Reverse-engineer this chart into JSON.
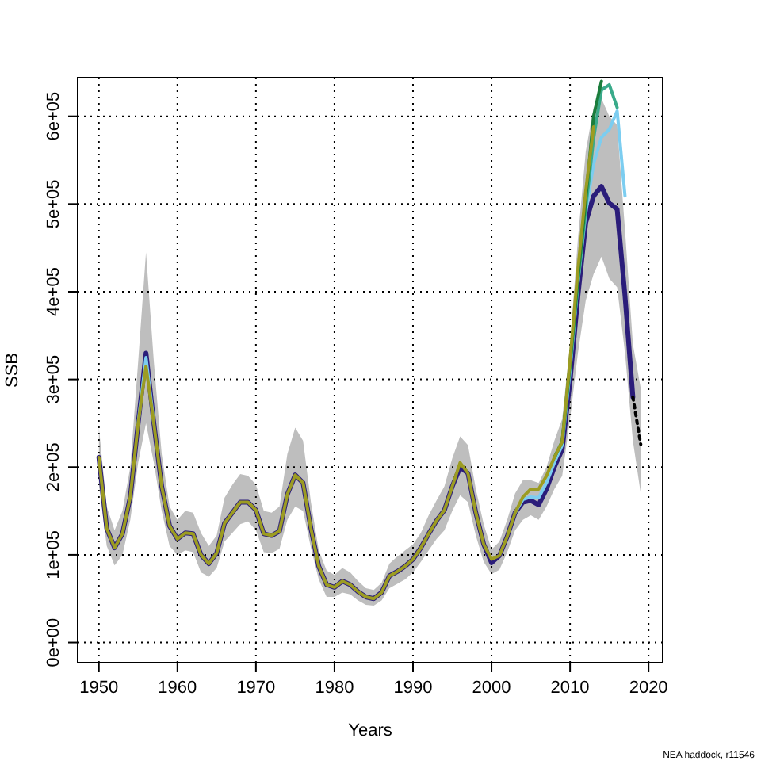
{
  "chart_data": {
    "type": "line",
    "xlabel": "Years",
    "ylabel": "SSB",
    "annotations": [
      "NEA haddock, r11546"
    ],
    "xlim": [
      1947.3,
      2021.8
    ],
    "ylim": [
      -23000,
      644000
    ],
    "grid": true,
    "xticks": [
      1950,
      1960,
      1970,
      1980,
      1990,
      2000,
      2010,
      2020
    ],
    "yticks": [
      {
        "value": 0,
        "label": "0e+00"
      },
      {
        "value": 100000,
        "label": "1e+05"
      },
      {
        "value": 200000,
        "label": "2e+05"
      },
      {
        "value": 300000,
        "label": "3e+05"
      },
      {
        "value": 400000,
        "label": "4e+05"
      },
      {
        "value": 500000,
        "label": "5e+05"
      },
      {
        "value": 600000,
        "label": "6e+05"
      }
    ],
    "x": [
      1950,
      1951,
      1952,
      1953,
      1954,
      1955,
      1956,
      1957,
      1958,
      1959,
      1960,
      1961,
      1962,
      1963,
      1964,
      1965,
      1966,
      1967,
      1968,
      1969,
      1970,
      1971,
      1972,
      1973,
      1974,
      1975,
      1976,
      1977,
      1978,
      1979,
      1980,
      1981,
      1982,
      1983,
      1984,
      1985,
      1986,
      1987,
      1988,
      1989,
      1990,
      1991,
      1992,
      1993,
      1994,
      1995,
      1996,
      1997,
      1998,
      1999,
      2000,
      2001,
      2002,
      2003,
      2004,
      2005,
      2006,
      2007,
      2008,
      2009,
      2010,
      2011,
      2012,
      2013,
      2014,
      2015,
      2016,
      2017,
      2018,
      2019
    ],
    "series": [
      {
        "color": "#2b1d7a",
        "values": [
          211000,
          130000,
          108000,
          124000,
          166000,
          250000,
          330000,
          250000,
          178000,
          133000,
          118000,
          125000,
          124000,
          100000,
          90000,
          102000,
          136000,
          148000,
          160000,
          160000,
          151000,
          124000,
          122000,
          127000,
          169000,
          191000,
          182000,
          130000,
          87000,
          66000,
          63000,
          70000,
          66000,
          58000,
          52000,
          50000,
          57000,
          76000,
          81000,
          87000,
          95000,
          108000,
          124000,
          139000,
          151000,
          178000,
          200000,
          193000,
          148000,
          112000,
          91000,
          99000,
          121000,
          148000,
          160000,
          162000,
          157000,
          175000,
          200000,
          220000,
          298000,
          395000,
          479000,
          509000,
          520000,
          501000,
          494000,
          395000,
          280000,
          null
        ],
        "lower": [
          180000,
          110000,
          88000,
          100000,
          140000,
          205000,
          250000,
          205000,
          150000,
          110000,
          100000,
          105000,
          103000,
          80000,
          75000,
          85000,
          115000,
          125000,
          135000,
          138000,
          128000,
          103000,
          102000,
          107000,
          140000,
          155000,
          150000,
          108000,
          72000,
          52000,
          52000,
          57000,
          55000,
          48000,
          43000,
          42000,
          48000,
          62000,
          67000,
          72000,
          80000,
          92000,
          105000,
          118000,
          128000,
          150000,
          168000,
          160000,
          122000,
          92000,
          78000,
          83000,
          103000,
          128000,
          140000,
          145000,
          140000,
          155000,
          175000,
          190000,
          255000,
          330000,
          390000,
          420000,
          440000,
          415000,
          405000,
          330000,
          230000,
          170000
        ],
        "upper": [
          245000,
          155000,
          128000,
          150000,
          200000,
          320000,
          445000,
          320000,
          215000,
          155000,
          140000,
          150000,
          148000,
          125000,
          110000,
          122000,
          165000,
          180000,
          192000,
          190000,
          180000,
          150000,
          148000,
          155000,
          215000,
          245000,
          230000,
          160000,
          105000,
          82000,
          77000,
          85000,
          80000,
          70000,
          62000,
          60000,
          68000,
          90000,
          98000,
          105000,
          112000,
          125000,
          145000,
          162000,
          178000,
          210000,
          235000,
          225000,
          175000,
          135000,
          106000,
          115000,
          140000,
          170000,
          185000,
          185000,
          182000,
          200000,
          230000,
          255000,
          340000,
          460000,
          560000,
          610000,
          620000,
          600000,
          590000,
          470000,
          340000,
          290000
        ]
      },
      {
        "color": "#7ccdf0",
        "values": [
          null,
          null,
          null,
          null,
          null,
          250000,
          325000,
          250000,
          null,
          null,
          null,
          null,
          null,
          null,
          null,
          null,
          null,
          null,
          null,
          null,
          null,
          null,
          null,
          null,
          null,
          null,
          null,
          null,
          null,
          null,
          null,
          null,
          null,
          null,
          null,
          null,
          null,
          null,
          null,
          null,
          null,
          null,
          null,
          null,
          null,
          null,
          null,
          null,
          null,
          null,
          null,
          null,
          null,
          148000,
          163000,
          166000,
          165000,
          182000,
          205000,
          225000,
          310000,
          410000,
          490000,
          546000,
          576000,
          585000,
          606000,
          509000,
          null,
          null
        ]
      },
      {
        "color": "#3aaa8a",
        "values": [
          null,
          null,
          null,
          null,
          null,
          null,
          null,
          null,
          null,
          null,
          null,
          null,
          null,
          null,
          null,
          null,
          null,
          null,
          null,
          null,
          null,
          null,
          null,
          null,
          null,
          null,
          null,
          null,
          null,
          null,
          null,
          null,
          null,
          null,
          null,
          null,
          null,
          null,
          null,
          null,
          null,
          null,
          null,
          null,
          null,
          null,
          null,
          null,
          null,
          null,
          null,
          null,
          null,
          null,
          null,
          null,
          null,
          null,
          211000,
          229000,
          315000,
          410000,
          495000,
          575000,
          630000,
          636000,
          610000,
          null,
          null,
          null
        ]
      },
      {
        "color": "#1b7d3c",
        "values": [
          null,
          null,
          null,
          null,
          null,
          null,
          null,
          null,
          null,
          null,
          null,
          null,
          null,
          null,
          null,
          null,
          null,
          null,
          null,
          null,
          null,
          null,
          null,
          null,
          null,
          null,
          null,
          null,
          null,
          null,
          null,
          null,
          null,
          null,
          null,
          null,
          null,
          null,
          null,
          null,
          null,
          null,
          null,
          null,
          null,
          null,
          null,
          null,
          null,
          null,
          null,
          null,
          null,
          null,
          null,
          null,
          null,
          null,
          211000,
          229000,
          318000,
          415000,
          505000,
          600000,
          640000,
          null,
          null,
          null,
          null,
          null
        ]
      },
      {
        "color": "#9c9c22",
        "values": [
          211000,
          130000,
          108000,
          124000,
          166000,
          250000,
          315000,
          250000,
          178000,
          133000,
          118000,
          125000,
          124000,
          100000,
          90000,
          102000,
          136000,
          148000,
          160000,
          160000,
          151000,
          124000,
          122000,
          127000,
          169000,
          191000,
          182000,
          130000,
          87000,
          66000,
          63000,
          70000,
          66000,
          58000,
          52000,
          50000,
          57000,
          76000,
          81000,
          87000,
          95000,
          108000,
          124000,
          139000,
          151000,
          178000,
          205000,
          193000,
          148000,
          112000,
          95000,
          99000,
          121000,
          148000,
          166000,
          175000,
          175000,
          190000,
          211000,
          229000,
          322000,
          425000,
          515000,
          588000,
          null,
          null,
          null,
          null,
          null,
          null
        ]
      },
      {
        "color": "#000000",
        "line_style": "dotted",
        "values": [
          null,
          null,
          null,
          null,
          null,
          null,
          null,
          null,
          null,
          null,
          null,
          null,
          null,
          null,
          null,
          null,
          null,
          null,
          null,
          null,
          null,
          null,
          null,
          null,
          null,
          null,
          null,
          null,
          null,
          null,
          null,
          null,
          null,
          null,
          null,
          null,
          null,
          null,
          null,
          null,
          null,
          null,
          null,
          null,
          null,
          null,
          null,
          null,
          null,
          null,
          null,
          null,
          null,
          null,
          null,
          null,
          null,
          null,
          null,
          null,
          null,
          null,
          null,
          null,
          null,
          null,
          null,
          null,
          280000,
          226000
        ]
      }
    ]
  }
}
